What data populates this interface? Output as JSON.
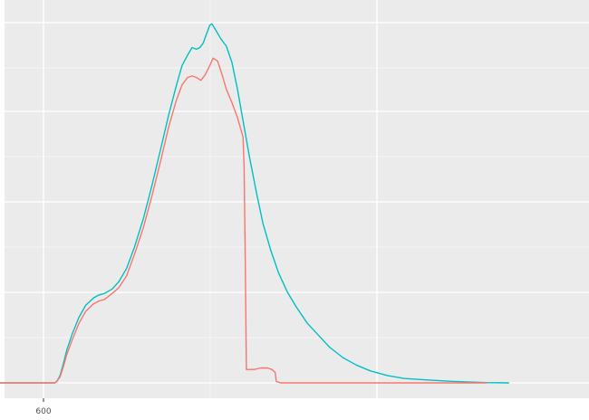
{
  "chart_data": {
    "type": "line",
    "title": "",
    "xlabel": "",
    "ylabel": "",
    "grid": true,
    "background": "#EBEBEB",
    "x_ticks": [
      600
    ],
    "x_tick_labels": [
      "600"
    ],
    "series": [
      {
        "color": "#00BFC4",
        "points": [
          [
            547,
            0
          ],
          [
            600,
            0
          ],
          [
            610,
            0
          ],
          [
            612,
            1
          ],
          [
            615,
            5
          ],
          [
            618,
            13
          ],
          [
            621,
            22
          ],
          [
            626,
            33
          ],
          [
            632,
            44
          ],
          [
            638,
            52
          ],
          [
            645,
            57
          ],
          [
            650,
            59
          ],
          [
            655,
            60
          ],
          [
            662,
            63
          ],
          [
            668,
            68
          ],
          [
            675,
            77
          ],
          [
            682,
            91
          ],
          [
            690,
            110
          ],
          [
            698,
            133
          ],
          [
            706,
            158
          ],
          [
            713,
            180
          ],
          [
            720,
            200
          ],
          [
            725,
            213
          ],
          [
            730,
            220
          ],
          [
            734,
            225
          ],
          [
            738,
            224
          ],
          [
            741,
            225
          ],
          [
            744,
            228
          ],
          [
            747,
            234
          ],
          [
            750,
            240
          ],
          [
            752,
            241
          ],
          [
            756,
            236
          ],
          [
            760,
            231
          ],
          [
            765,
            226
          ],
          [
            770,
            215
          ],
          [
            775,
            197
          ],
          [
            780,
            176
          ],
          [
            786,
            151
          ],
          [
            792,
            128
          ],
          [
            798,
            107
          ],
          [
            805,
            89
          ],
          [
            812,
            74
          ],
          [
            820,
            61
          ],
          [
            828,
            51
          ],
          [
            838,
            40
          ],
          [
            848,
            32
          ],
          [
            858,
            24
          ],
          [
            870,
            17
          ],
          [
            882,
            12
          ],
          [
            895,
            8
          ],
          [
            910,
            5
          ],
          [
            925,
            3
          ],
          [
            945,
            2
          ],
          [
            970,
            1
          ],
          [
            1000,
            0.2
          ],
          [
            1020,
            0
          ]
        ]
      },
      {
        "color": "#F8766D",
        "points": [
          [
            547,
            0
          ],
          [
            600,
            0
          ],
          [
            610,
            0
          ],
          [
            612,
            1
          ],
          [
            615,
            4
          ],
          [
            618,
            11
          ],
          [
            621,
            19
          ],
          [
            626,
            29
          ],
          [
            632,
            40
          ],
          [
            638,
            48
          ],
          [
            645,
            53
          ],
          [
            650,
            55
          ],
          [
            655,
            56
          ],
          [
            662,
            60
          ],
          [
            668,
            64
          ],
          [
            675,
            72
          ],
          [
            682,
            86
          ],
          [
            690,
            104
          ],
          [
            698,
            126
          ],
          [
            706,
            150
          ],
          [
            713,
            172
          ],
          [
            720,
            190
          ],
          [
            725,
            200
          ],
          [
            730,
            205
          ],
          [
            734,
            206
          ],
          [
            738,
            205
          ],
          [
            742,
            203
          ],
          [
            746,
            207
          ],
          [
            750,
            213
          ],
          [
            753,
            218
          ],
          [
            757,
            216
          ],
          [
            761,
            207
          ],
          [
            765,
            197
          ],
          [
            770,
            188
          ],
          [
            775,
            178
          ],
          [
            780,
            165
          ],
          [
            781,
            145
          ],
          [
            782,
            85
          ],
          [
            783,
            9
          ],
          [
            790,
            9
          ],
          [
            796,
            10
          ],
          [
            802,
            10
          ],
          [
            806,
            9
          ],
          [
            809,
            7
          ],
          [
            810,
            1
          ],
          [
            814,
            0
          ],
          [
            850,
            0
          ],
          [
            900,
            0
          ],
          [
            950,
            0
          ],
          [
            1000,
            0
          ]
        ]
      }
    ],
    "xlim": [
      547,
      1090
    ],
    "ylim": [
      0,
      243
    ]
  }
}
